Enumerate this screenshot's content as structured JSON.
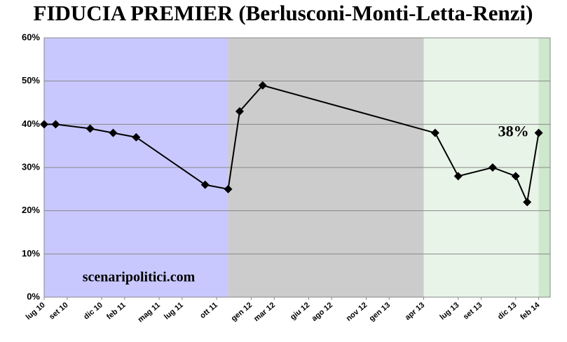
{
  "chart_data": {
    "type": "line",
    "title": "FIDUCIA PREMIER (Berlusconi-Monti-Letta-Renzi)",
    "annotation": "scenaripolitici.com",
    "x": [
      "2010-07",
      "2010-08",
      "2010-11",
      "2011-01",
      "2011-03",
      "2011-09",
      "2011-11",
      "2011-12",
      "2012-02",
      "2013-05",
      "2013-07",
      "2013-10",
      "2013-12",
      "2014-01",
      "2014-02"
    ],
    "values": [
      40,
      40,
      39,
      38,
      37,
      26,
      25,
      43,
      49,
      38,
      28,
      30,
      28,
      22,
      38
    ],
    "value_labels": [
      null,
      null,
      null,
      null,
      null,
      null,
      null,
      null,
      null,
      null,
      null,
      null,
      null,
      null,
      "38%"
    ],
    "color": "#000000",
    "bands": [
      {
        "from": "2010-07",
        "to": "2011-11",
        "color": "#c8c8ff"
      },
      {
        "from": "2011-11",
        "to": "2013-04",
        "color": "#cccccc"
      },
      {
        "from": "2013-04",
        "to": "2014-02",
        "color": "#e8f4e8"
      },
      {
        "from": "2014-02",
        "to": "2014-03",
        "color": "#cde8cd"
      }
    ],
    "xlim": [
      "2010-07",
      "2014-03"
    ],
    "xticks": [
      {
        "value": "2010-07",
        "label": "lug 10"
      },
      {
        "value": "2010-09",
        "label": "set 10"
      },
      {
        "value": "2010-12",
        "label": "dic 10"
      },
      {
        "value": "2011-02",
        "label": "feb 11"
      },
      {
        "value": "2011-05",
        "label": "mag 11"
      },
      {
        "value": "2011-07",
        "label": "lug 11"
      },
      {
        "value": "2011-10",
        "label": "ott 11"
      },
      {
        "value": "2012-01",
        "label": "gen 12"
      },
      {
        "value": "2012-03",
        "label": "mar 12"
      },
      {
        "value": "2012-06",
        "label": "giu 12"
      },
      {
        "value": "2012-08",
        "label": "ago 12"
      },
      {
        "value": "2012-11",
        "label": "nov 12"
      },
      {
        "value": "2013-01",
        "label": "gen 13"
      },
      {
        "value": "2013-04",
        "label": "apr 13"
      },
      {
        "value": "2013-07",
        "label": "lug 13"
      },
      {
        "value": "2013-09",
        "label": "set 13"
      },
      {
        "value": "2013-12",
        "label": "dic 13"
      },
      {
        "value": "2014-02",
        "label": "feb 14"
      }
    ],
    "ylim": [
      0,
      60
    ],
    "yticks": [
      {
        "value": 0,
        "label": "0%"
      },
      {
        "value": 10,
        "label": "10%"
      },
      {
        "value": 20,
        "label": "20%"
      },
      {
        "value": 30,
        "label": "30%"
      },
      {
        "value": 40,
        "label": "40%"
      },
      {
        "value": 50,
        "label": "50%"
      },
      {
        "value": 60,
        "label": "60%"
      }
    ],
    "grid": true
  }
}
